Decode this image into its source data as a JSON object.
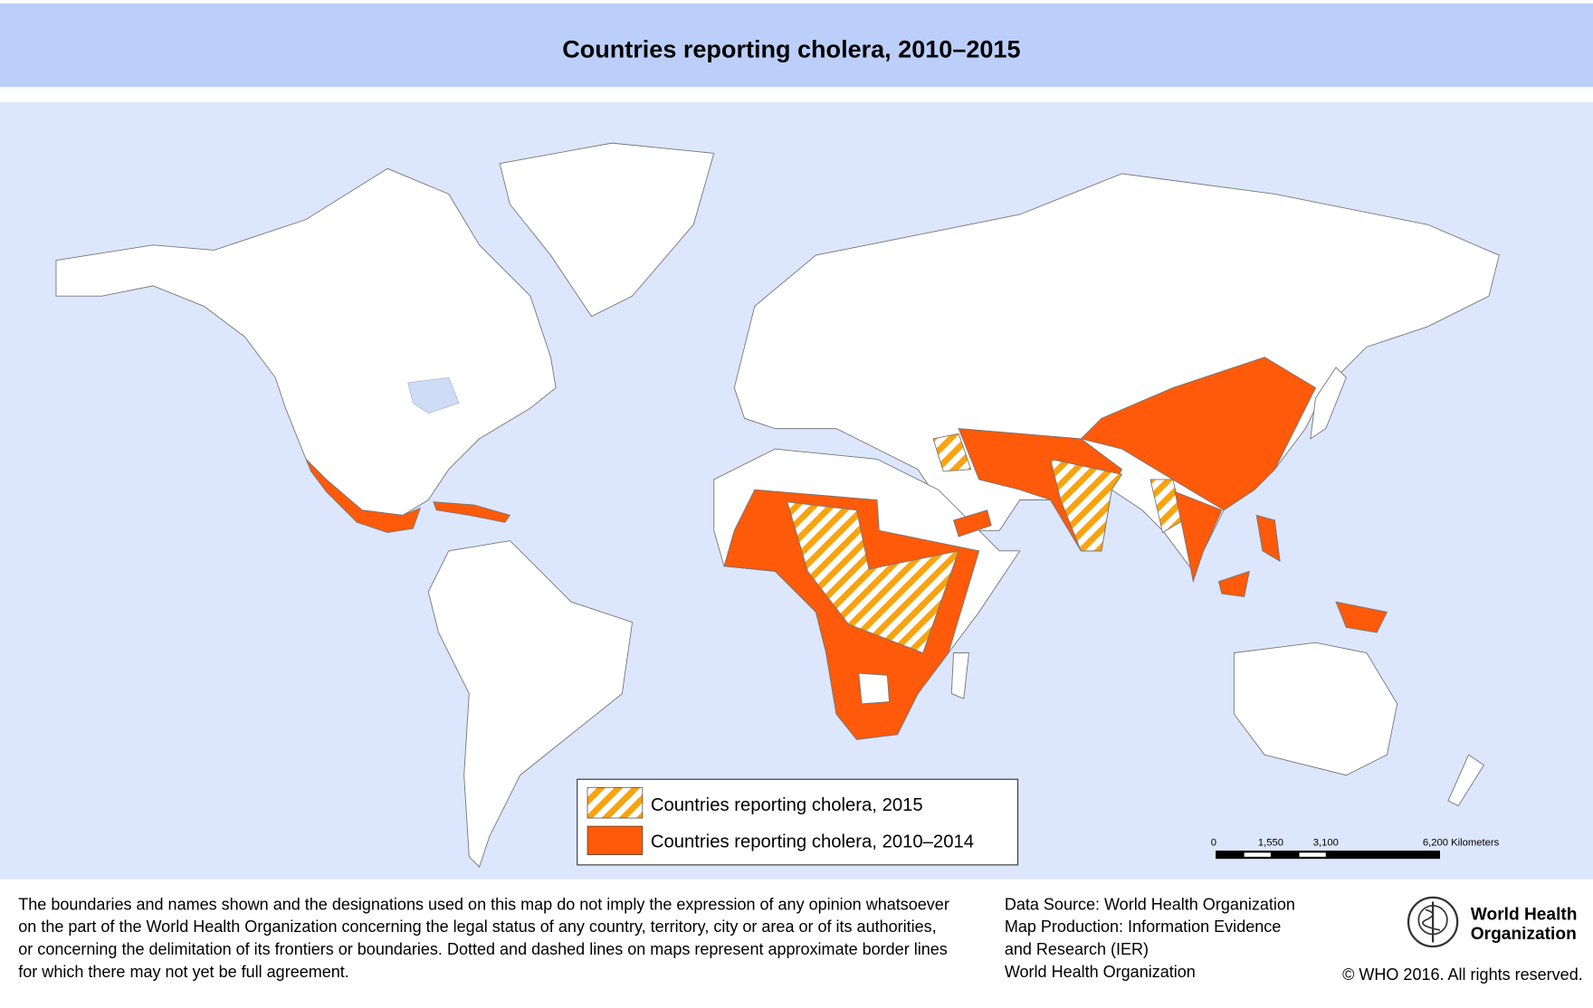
{
  "title": "Countries reporting cholera, 2010–2015",
  "legend": {
    "items": [
      "Countries reporting cholera, 2015",
      "Countries reporting cholera, 2010–2014"
    ]
  },
  "scale_bar": {
    "labels": [
      "0",
      "1,550",
      "3,100",
      "6,200 Kilometers"
    ]
  },
  "disclaimer": [
    "The boundaries and names shown and the designations used on this map do not imply the expression of any opinion whatsoever",
    "on the part of the World Health Organization concerning the legal status of any country, territory, city or area or of its authorities,",
    "or concerning the delimitation of its frontiers or boundaries. Dotted and dashed lines on maps represent approximate border lines",
    "for which there may not yet be full agreement."
  ],
  "data_source": [
    "Data Source: World Health Organization",
    "Map Production: Information Evidence",
    "and Research (IER)",
    "World Health Organization"
  ],
  "logo": [
    "World Health",
    "Organization"
  ],
  "copyright": "© WHO 2016. All rights reserved."
}
